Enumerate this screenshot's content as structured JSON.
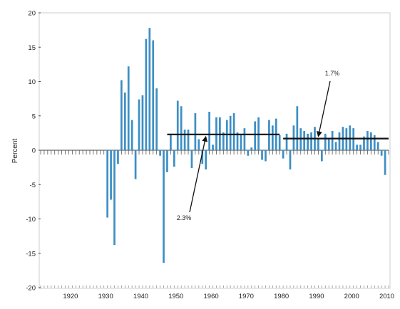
{
  "chart_data": {
    "type": "bar",
    "title": "",
    "xlabel": "",
    "ylabel": "Percent",
    "xlim": [
      1911,
      2010
    ],
    "ylim": [
      -20,
      20
    ],
    "x_ticks": [
      1920,
      1930,
      1940,
      1950,
      1960,
      1970,
      1980,
      1990,
      2000,
      2010
    ],
    "y_ticks": [
      20,
      15,
      10,
      5,
      0,
      -5,
      -10,
      -15,
      -20
    ],
    "grid": false,
    "colors": {
      "bar": "#3d8fc4",
      "avg_line": "#111111",
      "axis": "#444444",
      "frame": "#cccccc"
    },
    "series": [
      {
        "x": [
          1930,
          1931,
          1932,
          1933,
          1934,
          1935,
          1936,
          1937,
          1938,
          1939,
          1940,
          1941,
          1942,
          1943,
          1944,
          1945,
          1946,
          1947,
          1948,
          1949,
          1950,
          1951,
          1952,
          1953,
          1954,
          1955,
          1956,
          1957,
          1958,
          1959,
          1960,
          1961,
          1962,
          1963,
          1964,
          1965,
          1966,
          1967,
          1968,
          1969,
          1970,
          1971,
          1972,
          1973,
          1974,
          1975,
          1976,
          1977,
          1978,
          1979,
          1980,
          1981,
          1982,
          1983,
          1984,
          1985,
          1986,
          1987,
          1988,
          1989,
          1990,
          1991,
          1992,
          1993,
          1994,
          1995,
          1996,
          1997,
          1998,
          1999,
          2000,
          2001,
          2002,
          2003,
          2004,
          2005,
          2006,
          2007,
          2008,
          2009
        ],
        "values": [
          -9.8,
          -7.2,
          -13.8,
          -2.0,
          10.2,
          8.4,
          12.2,
          4.4,
          -4.2,
          7.4,
          8.0,
          16.2,
          17.8,
          16.0,
          9.0,
          -0.8,
          -16.4,
          -3.2,
          2.4,
          -2.4,
          7.2,
          6.4,
          3.0,
          3.0,
          -2.6,
          5.4,
          1.6,
          -2.0,
          -2.8,
          5.6,
          0.8,
          4.8,
          4.8,
          2.6,
          4.4,
          5.0,
          5.4,
          2.6,
          2.2,
          3.2,
          -0.8,
          0.4,
          4.2,
          4.8,
          -1.4,
          -1.6,
          4.4,
          3.6,
          4.6,
          2.2,
          -1.2,
          2.4,
          -2.8,
          3.6,
          6.4,
          3.2,
          2.8,
          2.4,
          2.6,
          3.4,
          1.8,
          -1.6,
          2.4,
          1.6,
          2.8,
          1.2,
          2.6,
          3.4,
          3.2,
          3.6,
          3.2,
          0.8,
          0.8,
          2.0,
          2.8,
          2.6,
          2.2,
          1.2,
          -0.8,
          -3.6
        ]
      }
    ],
    "reference_lines": [
      {
        "label": "2.3%",
        "value": 2.3,
        "x_start": 1947,
        "x_end": 1979
      },
      {
        "label": "1.7%",
        "value": 1.7,
        "x_start": 1980,
        "x_end": 2010
      }
    ]
  }
}
